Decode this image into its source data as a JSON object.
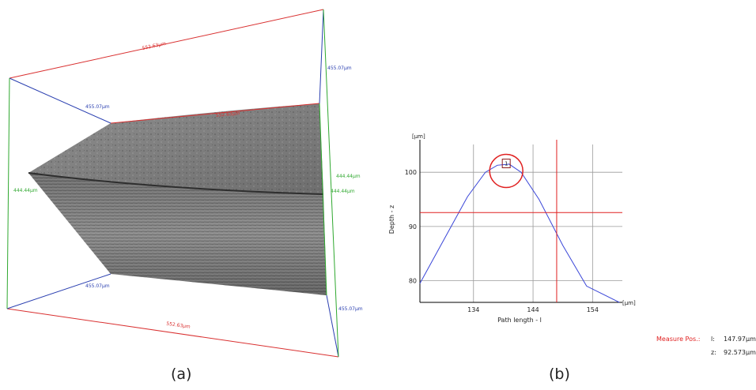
{
  "panel_a": {
    "caption": "(a)",
    "dimensions": {
      "top_length": "552.63µm",
      "bottom_length": "552.63µm",
      "mid_length": "552.63µm",
      "left_depth": "455.07µm",
      "right_depth_top": "455.07µm",
      "right_depth_bottom": "455.07µm",
      "bottom_depth": "455.07µm",
      "left_height": "444.44µm",
      "right_height_outer": "444.44µm",
      "right_height_inner": "444.44µm"
    },
    "colors": {
      "length": "#d93030",
      "depth": "#2a3fb0",
      "height": "#2fa82f"
    }
  },
  "panel_b": {
    "caption": "(b)",
    "marker_label": "1",
    "measure": {
      "label": "Measure Pos.:",
      "l_key": "l:",
      "l_value": "147.97µm",
      "z_key": "z:",
      "z_value": "92.573µm"
    },
    "colors": {
      "profile": "#3a46d8",
      "cursor": "#e02020",
      "grid": "#9a9a9a"
    }
  },
  "chart_data": {
    "type": "line",
    "xlabel": "Path length - l",
    "ylabel": "Depth - z",
    "x_unit": "[µm]",
    "y_unit": "[µm]",
    "xlim": [
      125,
      159
    ],
    "ylim": [
      76,
      106
    ],
    "x_ticks": [
      134,
      144,
      154
    ],
    "y_ticks": [
      80,
      90,
      100
    ],
    "grid": true,
    "x": [
      125,
      129,
      133,
      136,
      138,
      140,
      142,
      145,
      149,
      153,
      158.5
    ],
    "series": [
      {
        "values": [
          79.5,
          87.5,
          95.5,
          100.0,
          101.3,
          101.5,
          100.0,
          95.0,
          86.5,
          79.0,
          76.0
        ]
      }
    ],
    "cursor": {
      "x": 147.97,
      "z": 92.573
    },
    "marker": {
      "x": 139.5,
      "z": 101.7
    }
  }
}
